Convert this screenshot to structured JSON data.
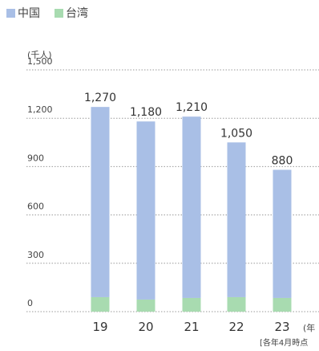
{
  "legend": [
    {
      "label": "中国",
      "color": "#a9bfe6"
    },
    {
      "label": "台湾",
      "color": "#a8dbb0"
    }
  ],
  "unit_label": "(千人)",
  "x_unit_label": "(年",
  "note": "[各年4月時点",
  "chart_data": {
    "type": "bar",
    "stacked": true,
    "categories": [
      "19",
      "20",
      "21",
      "22",
      "23"
    ],
    "series": [
      {
        "name": "台湾",
        "color": "#a8dbb0",
        "values": [
          90,
          75,
          85,
          90,
          85
        ]
      },
      {
        "name": "中国",
        "color": "#a9bfe6",
        "values": [
          1180,
          1105,
          1125,
          960,
          795
        ]
      }
    ],
    "totals": [
      1270,
      1180,
      1210,
      1050,
      880
    ],
    "total_labels": [
      "1,270",
      "1,180",
      "1,210",
      "1,050",
      "880"
    ],
    "yticks": [
      0,
      300,
      600,
      900,
      1200,
      1500
    ],
    "ytick_labels": [
      "0",
      "300",
      "600",
      "900",
      "1,200",
      "1,500"
    ],
    "ylim": [
      0,
      1500
    ],
    "grid": "dotted horizontal"
  }
}
